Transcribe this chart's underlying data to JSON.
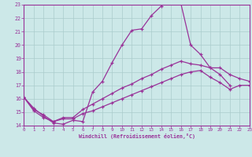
{
  "xlabel": "Windchill (Refroidissement éolien,°C)",
  "bg_color": "#cce8e8",
  "grid_color": "#aacccc",
  "line_color": "#993399",
  "xmin": 0,
  "xmax": 23,
  "ymin": 14,
  "ymax": 23,
  "series1_x": [
    0,
    1,
    2,
    3,
    4,
    5,
    6,
    7,
    8,
    9,
    10,
    11,
    12,
    13,
    14,
    15,
    16,
    17,
    18,
    19,
    20,
    21
  ],
  "series1_y": [
    16.1,
    15.3,
    14.7,
    14.2,
    14.1,
    14.4,
    14.3,
    16.5,
    17.3,
    18.7,
    20.0,
    21.1,
    21.2,
    22.2,
    22.9,
    23.3,
    23.1,
    20.0,
    19.3,
    18.3,
    17.8,
    17.0
  ],
  "series2_x": [
    0,
    1,
    2,
    3,
    4,
    5,
    6,
    7,
    8,
    9,
    10,
    11,
    12,
    13,
    14,
    15,
    16,
    17,
    18,
    19,
    20,
    21,
    22,
    23
  ],
  "series2_y": [
    16.1,
    15.2,
    14.8,
    14.3,
    14.6,
    14.6,
    15.2,
    15.6,
    16.0,
    16.4,
    16.8,
    17.1,
    17.5,
    17.8,
    18.2,
    18.5,
    18.8,
    18.6,
    18.5,
    18.3,
    18.3,
    17.8,
    17.5,
    17.3
  ],
  "series3_x": [
    0,
    1,
    2,
    3,
    4,
    5,
    6,
    7,
    8,
    9,
    10,
    11,
    12,
    13,
    14,
    15,
    16,
    17,
    18,
    19,
    20,
    21,
    22,
    23
  ],
  "series3_y": [
    16.1,
    15.1,
    14.6,
    14.3,
    14.5,
    14.5,
    14.9,
    15.1,
    15.4,
    15.7,
    16.0,
    16.3,
    16.6,
    16.9,
    17.2,
    17.5,
    17.8,
    18.0,
    18.1,
    17.6,
    17.2,
    16.7,
    17.0,
    17.0
  ]
}
